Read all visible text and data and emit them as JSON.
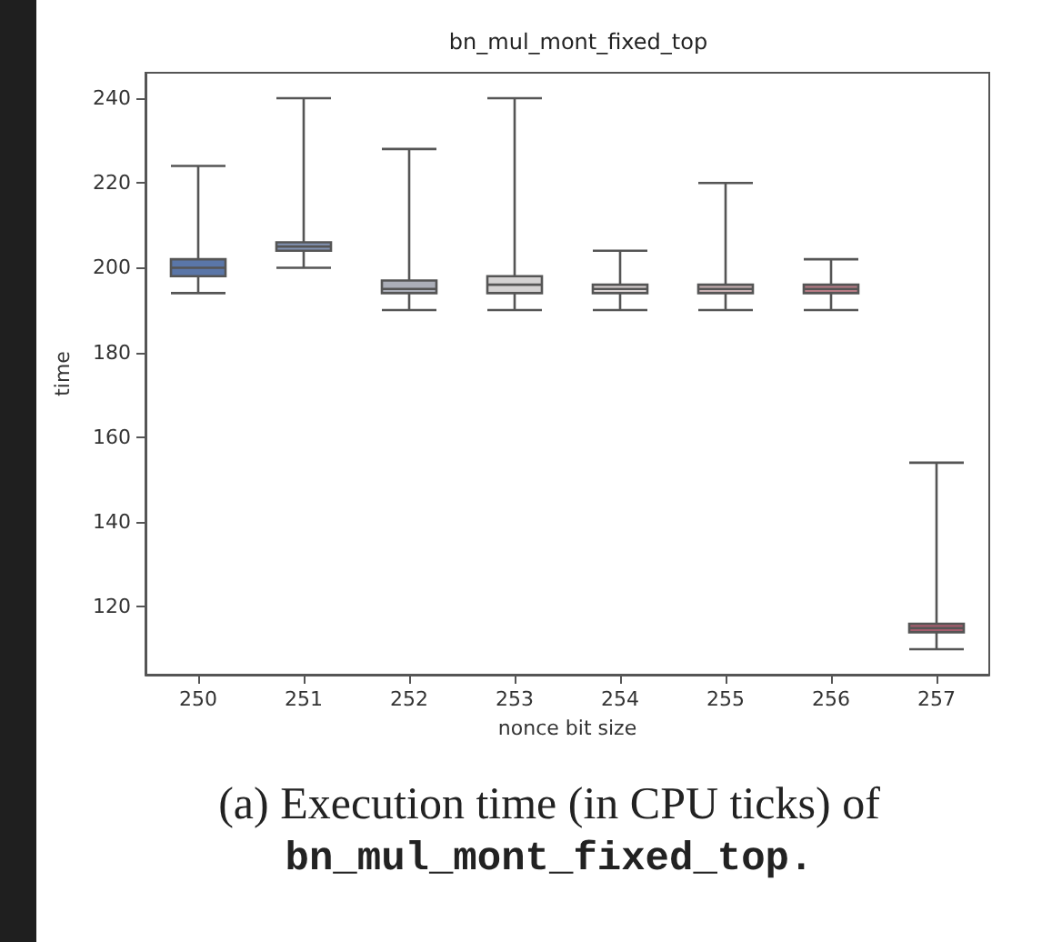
{
  "chart_data": {
    "type": "box",
    "title": "bn_mul_mont_fixed_top",
    "xlabel": "nonce bit size",
    "ylabel": "time",
    "categories": [
      "250",
      "251",
      "252",
      "253",
      "254",
      "255",
      "256",
      "257"
    ],
    "boxes": [
      {
        "low": 194,
        "q1": 198,
        "median": 200,
        "q3": 202,
        "high": 224
      },
      {
        "low": 200,
        "q1": 204,
        "median": 205,
        "q3": 206,
        "high": 240
      },
      {
        "low": 190,
        "q1": 194,
        "median": 195,
        "q3": 197,
        "high": 228
      },
      {
        "low": 190,
        "q1": 194,
        "median": 196,
        "q3": 198,
        "high": 240
      },
      {
        "low": 190,
        "q1": 194,
        "median": 195,
        "q3": 196,
        "high": 204
      },
      {
        "low": 190,
        "q1": 194,
        "median": 195,
        "q3": 196,
        "high": 220
      },
      {
        "low": 190,
        "q1": 194,
        "median": 195,
        "q3": 196,
        "high": 202
      },
      {
        "low": 110,
        "q1": 114,
        "median": 115,
        "q3": 116,
        "high": 154
      }
    ],
    "colors": [
      "#5a76a8",
      "#8393b4",
      "#abaeb8",
      "#d4d2d2",
      "#dcd4d4",
      "#c9b2b4",
      "#b87c86",
      "#a45c6c"
    ],
    "ylim": [
      104,
      246
    ],
    "yticks": [
      120,
      140,
      160,
      180,
      200,
      220,
      240
    ],
    "grid": false,
    "annotations": [
      "(a) Execution time (in CPU ticks) of",
      "bn_mul_mont_fixed_top."
    ]
  }
}
